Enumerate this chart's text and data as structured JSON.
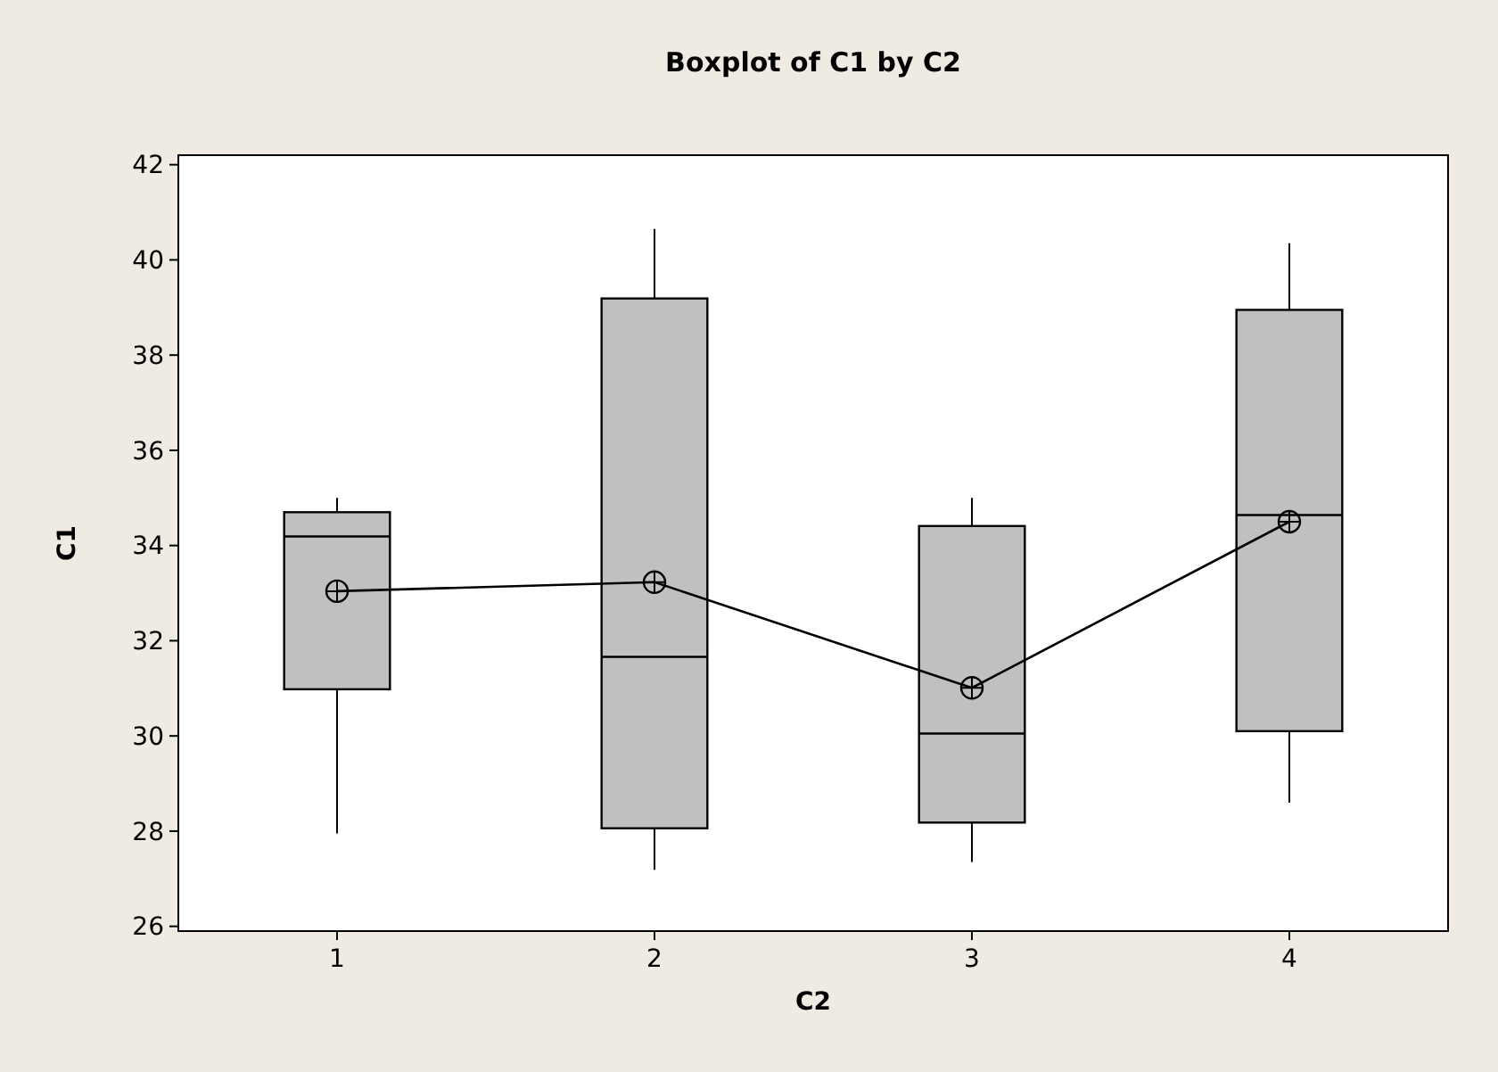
{
  "chart_data": {
    "type": "box",
    "title": "Boxplot of C1 by C2",
    "xlabel": "C2",
    "ylabel": "C1",
    "categories": [
      "1",
      "2",
      "3",
      "4"
    ],
    "boxes": [
      {
        "low": 27.95,
        "q1": 30.98,
        "median": 34.19,
        "q3": 34.7,
        "high": 35.0
      },
      {
        "low": 27.19,
        "q1": 28.06,
        "median": 31.66,
        "q3": 39.19,
        "high": 40.65
      },
      {
        "low": 27.35,
        "q1": 28.18,
        "median": 30.05,
        "q3": 34.41,
        "high": 35.0
      },
      {
        "low": 28.6,
        "q1": 30.1,
        "median": 34.64,
        "q3": 38.95,
        "high": 40.35
      }
    ],
    "color": "#c0c0c0",
    "series": [
      {
        "type": "line",
        "color": "#000000",
        "marker": "circle",
        "values": [
          33.04,
          33.23,
          31.01,
          34.5
        ]
      }
    ],
    "ylim": [
      25.9,
      42.2
    ],
    "yticks": [
      26,
      28,
      30,
      32,
      34,
      36,
      38,
      40,
      42
    ]
  }
}
